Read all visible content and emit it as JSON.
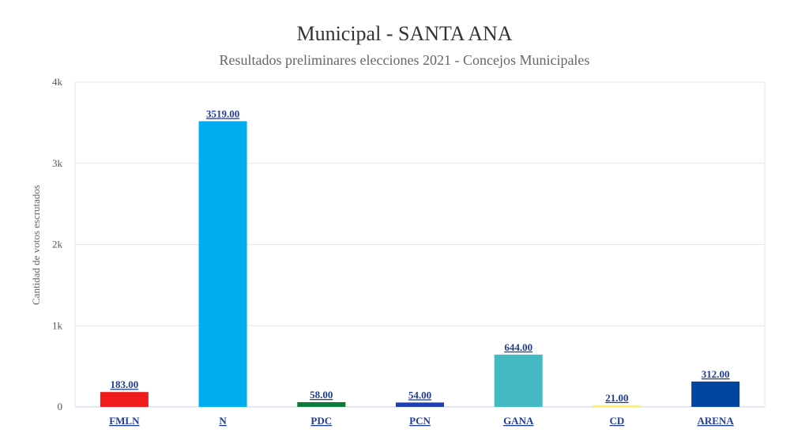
{
  "chart_data": {
    "type": "bar",
    "title": "Municipal - SANTA ANA",
    "subtitle": "Resultados preliminares elecciones 2021 - Concejos Municipales",
    "xlabel": "",
    "ylabel": "Cantidad de votos escrutados",
    "ylim": [
      0,
      4000
    ],
    "yticks": [
      0,
      1000,
      2000,
      3000,
      4000
    ],
    "ytick_labels": [
      "0",
      "1k",
      "2k",
      "3k",
      "4k"
    ],
    "grid": true,
    "legend": "none",
    "categories": [
      "FMLN",
      "N",
      "PDC",
      "PCN",
      "GANA",
      "CD",
      "ARENA"
    ],
    "values": [
      183,
      3519,
      58,
      54,
      644,
      21,
      312
    ],
    "value_labels": [
      "183.00",
      "3519.00",
      "58.00",
      "54.00",
      "644.00",
      "21.00",
      "312.00"
    ],
    "colors": [
      "#ee1c1c",
      "#00aeef",
      "#0a7a3a",
      "#1f3fb5",
      "#45b9c2",
      "#fff26b",
      "#0046a0"
    ]
  }
}
